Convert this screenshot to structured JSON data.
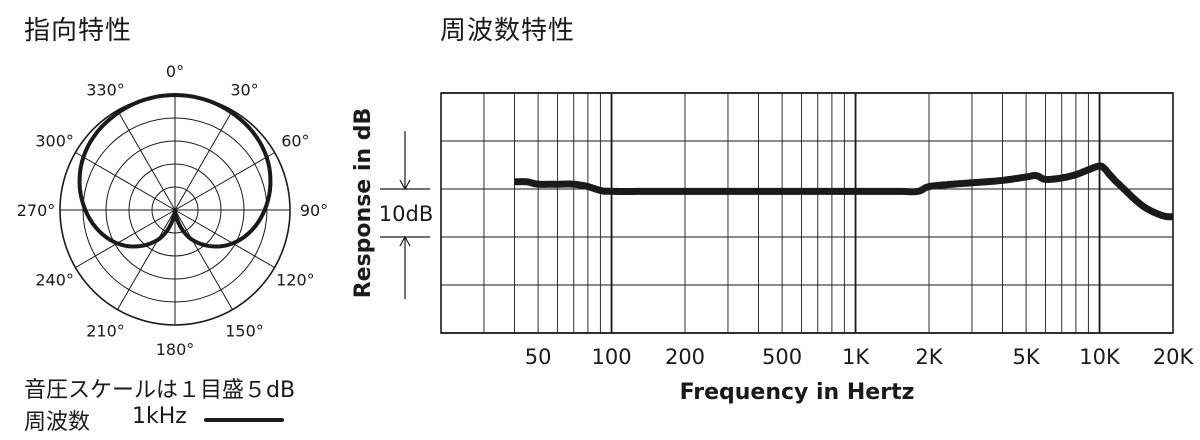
{
  "polar_panel": {
    "title": "指向特性",
    "scale_note": "音圧スケールは１目盛５dB",
    "legend_label": "周波数",
    "legend_freq": "1kHz"
  },
  "freq_panel": {
    "title": "周波数特性"
  },
  "chart_data": [
    {
      "type": "polar",
      "angle_labels": [
        "0°",
        "30°",
        "60°",
        "90°",
        "120°",
        "150°",
        "180°",
        "210°",
        "240°",
        "270°",
        "300°",
        "330°"
      ],
      "angles_deg": [
        0,
        30,
        60,
        90,
        120,
        150,
        180,
        210,
        240,
        270,
        300,
        330
      ],
      "rings": 5,
      "ring_step_db": 5,
      "series": [
        {
          "name": "1kHz",
          "angles_deg": [
            0,
            30,
            60,
            90,
            120,
            150,
            180,
            210,
            240,
            270,
            300,
            330
          ],
          "level_db": [
            0,
            -0.5,
            -2,
            -5.5,
            -10.5,
            -17.5,
            -25,
            -17.5,
            -10.5,
            -5.5,
            -2,
            -0.5
          ]
        }
      ],
      "grid": true
    },
    {
      "type": "line",
      "xlabel": "Frequency in Hertz",
      "ylabel": "Response in dB",
      "x_scale": "log",
      "xlim": [
        20,
        20000
      ],
      "x_tick_labels": [
        "50",
        "100",
        "200",
        "500",
        "1K",
        "2K",
        "5K",
        "10K",
        "20K"
      ],
      "x_tick_values": [
        50,
        100,
        200,
        500,
        1000,
        2000,
        5000,
        10000,
        20000
      ],
      "ylim": [
        -30,
        20
      ],
      "y_grid_step_db": 10,
      "scale_marker_label": "10dB",
      "grid": true,
      "series": [
        {
          "x": [
            40,
            45,
            50,
            60,
            70,
            80,
            90,
            100,
            150,
            200,
            300,
            500,
            700,
            1000,
            1500,
            1800,
            2000,
            2500,
            3000,
            4000,
            5000,
            5500,
            6000,
            7000,
            8000,
            9000,
            10000,
            10500,
            11000,
            12000,
            15000,
            18000,
            20000
          ],
          "y": [
            1.5,
            1.5,
            1,
            1,
            1,
            0.5,
            -0.3,
            -0.5,
            -0.5,
            -0.5,
            -0.5,
            -0.5,
            -0.5,
            -0.5,
            -0.5,
            -0.5,
            0.5,
            1,
            1.3,
            1.8,
            2.5,
            2.8,
            2,
            2.3,
            3,
            4,
            4.8,
            4.2,
            3,
            1,
            -3.5,
            -5.5,
            -5.8
          ]
        }
      ]
    }
  ]
}
